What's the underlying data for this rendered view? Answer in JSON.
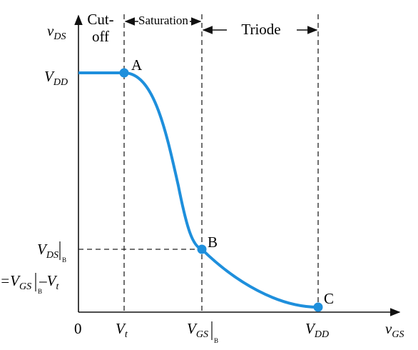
{
  "axes": {
    "y_label": {
      "main": "v",
      "sub": "DS"
    },
    "x_label": {
      "main": "v",
      "sub": "GS"
    },
    "origin": "0"
  },
  "regions": {
    "cutoff": [
      "Cut-",
      "off"
    ],
    "saturation": "Saturation",
    "triode": "Triode"
  },
  "y_labels": {
    "vdd": {
      "main": "V",
      "sub": "DD"
    },
    "vds_b": {
      "main": "V",
      "sub": "DS",
      "eval": "B"
    },
    "vds_b_eq": {
      "prefix": "=V",
      "sub": "GS",
      "eval": "B",
      "minus": "–V",
      "sub2": "t"
    }
  },
  "x_labels": {
    "vt": {
      "main": "V",
      "sub": "t"
    },
    "vgs_b": {
      "main": "V",
      "sub": "GS",
      "eval": "B"
    },
    "vdd": {
      "main": "V",
      "sub": "DD"
    }
  },
  "points": {
    "a": "A",
    "b": "B",
    "c": "C"
  }
}
